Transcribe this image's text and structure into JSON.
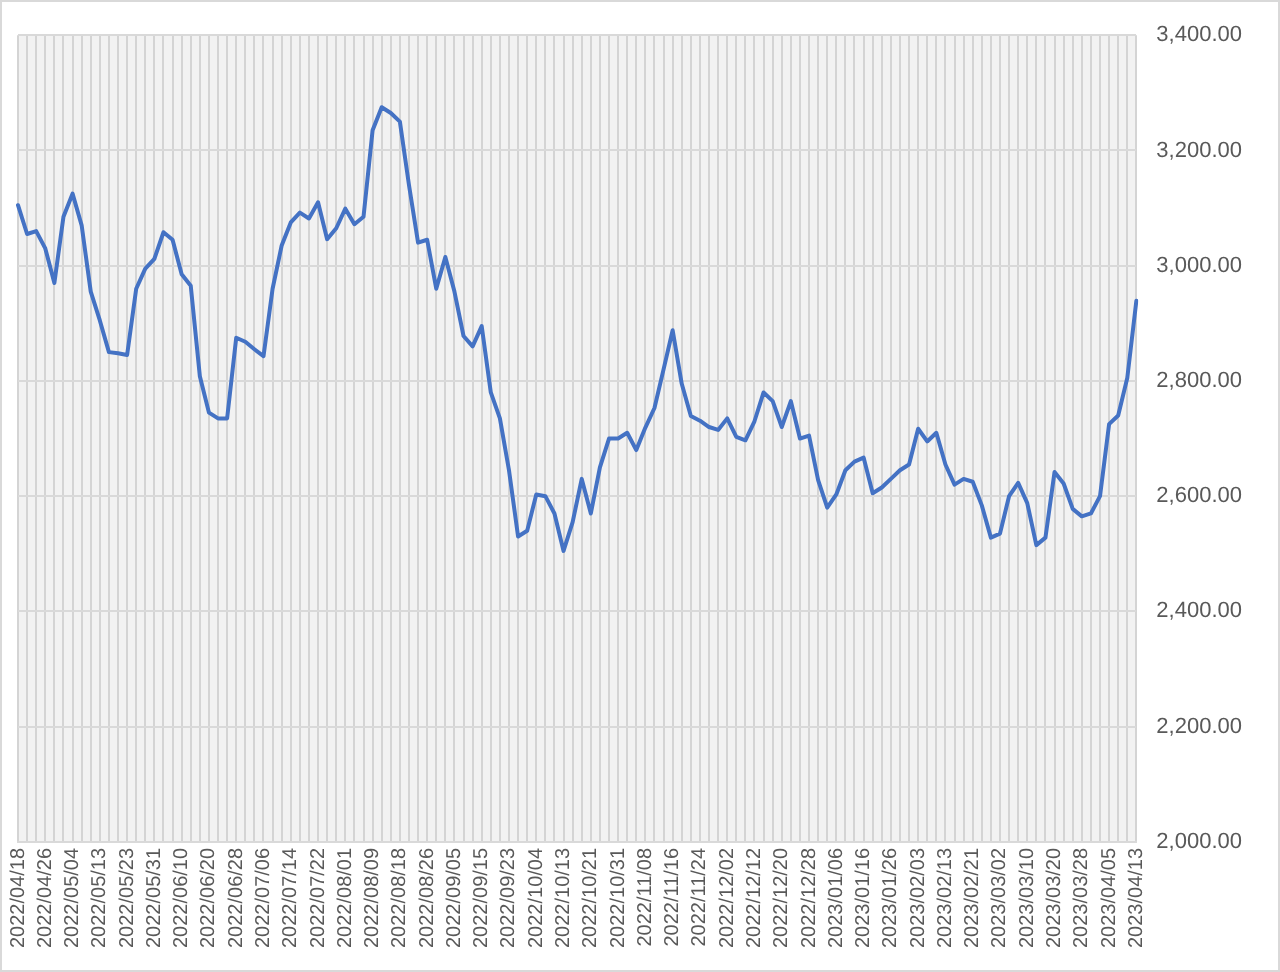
{
  "chart_data": {
    "type": "line",
    "categories": [
      "2022/04/18",
      null,
      null,
      "2022/04/26",
      null,
      null,
      "2022/05/04",
      null,
      null,
      "2022/05/13",
      null,
      null,
      "2022/05/23",
      null,
      null,
      "2022/05/31",
      null,
      null,
      "2022/06/10",
      null,
      null,
      "2022/06/20",
      null,
      null,
      "2022/06/28",
      null,
      null,
      "2022/07/06",
      null,
      null,
      "2022/07/14",
      null,
      null,
      "2022/07/22",
      null,
      null,
      "2022/08/01",
      null,
      null,
      "2022/08/09",
      null,
      null,
      "2022/08/18",
      null,
      null,
      "2022/08/26",
      null,
      null,
      "2022/09/05",
      null,
      null,
      "2022/09/15",
      null,
      null,
      "2022/09/23",
      null,
      null,
      "2022/10/04",
      null,
      null,
      "2022/10/13",
      null,
      null,
      "2022/10/21",
      null,
      null,
      "2022/10/31",
      null,
      null,
      "2022/11/08",
      null,
      null,
      "2022/11/16",
      null,
      null,
      "2022/11/24",
      null,
      null,
      "2022/12/02",
      null,
      null,
      "2022/12/12",
      null,
      null,
      "2022/12/20",
      null,
      null,
      "2022/12/28",
      null,
      null,
      "2023/01/06",
      null,
      null,
      "2023/01/16",
      null,
      null,
      "2023/01/26",
      null,
      null,
      "2023/02/03",
      null,
      null,
      "2023/02/13",
      null,
      null,
      "2023/02/21",
      null,
      null,
      "2023/03/02",
      null,
      null,
      "2023/03/10",
      null,
      null,
      "2023/03/20",
      null,
      null,
      "2023/03/28",
      null,
      null,
      "2023/04/05",
      null,
      null,
      "2023/04/13"
    ],
    "series": [
      {
        "color": "#4472c4",
        "values": [
          3105,
          3055,
          3060,
          3030,
          2970,
          3085,
          3125,
          3070,
          2955,
          2905,
          2850,
          2848,
          2845,
          2960,
          2995,
          3012,
          3058,
          3045,
          2985,
          2965,
          2808,
          2745,
          2735,
          2735,
          2875,
          2868,
          2855,
          2843,
          2960,
          3035,
          3075,
          3092,
          3082,
          3110,
          3046,
          3065,
          3099,
          3072,
          3085,
          3235,
          3275,
          3265,
          3250,
          3140,
          3040,
          3045,
          2960,
          3015,
          2955,
          2878,
          2860,
          2895,
          2780,
          2735,
          2645,
          2530,
          2540,
          2603,
          2600,
          2570,
          2505,
          2555,
          2630,
          2570,
          2650,
          2700,
          2700,
          2710,
          2680,
          2719,
          2753,
          2820,
          2888,
          2795,
          2739,
          2731,
          2720,
          2715,
          2735,
          2703,
          2697,
          2730,
          2780,
          2765,
          2720,
          2765,
          2700,
          2705,
          2628,
          2580,
          2603,
          2645,
          2660,
          2667,
          2605,
          2615,
          2630,
          2645,
          2655,
          2717,
          2695,
          2710,
          2655,
          2620,
          2630,
          2625,
          2584,
          2528,
          2535,
          2600,
          2623,
          2588,
          2515,
          2528,
          2642,
          2622,
          2578,
          2565,
          2570,
          2600,
          2725,
          2740,
          2805,
          2939
        ]
      }
    ],
    "ylim": [
      2000,
      3400
    ],
    "yticks": [
      {
        "value": 2000,
        "label": "2,000.00"
      },
      {
        "value": 2200,
        "label": "2,200.00"
      },
      {
        "value": 2400,
        "label": "2,400.00"
      },
      {
        "value": 2600,
        "label": "2,600.00"
      },
      {
        "value": 2800,
        "label": "2,800.00"
      },
      {
        "value": 3000,
        "label": "3,000.00"
      },
      {
        "value": 3200,
        "label": "3,200.00"
      },
      {
        "value": 3400,
        "label": "3,400.00"
      }
    ],
    "grid": true,
    "legend": false,
    "marker": "none",
    "line_style": "solid"
  }
}
